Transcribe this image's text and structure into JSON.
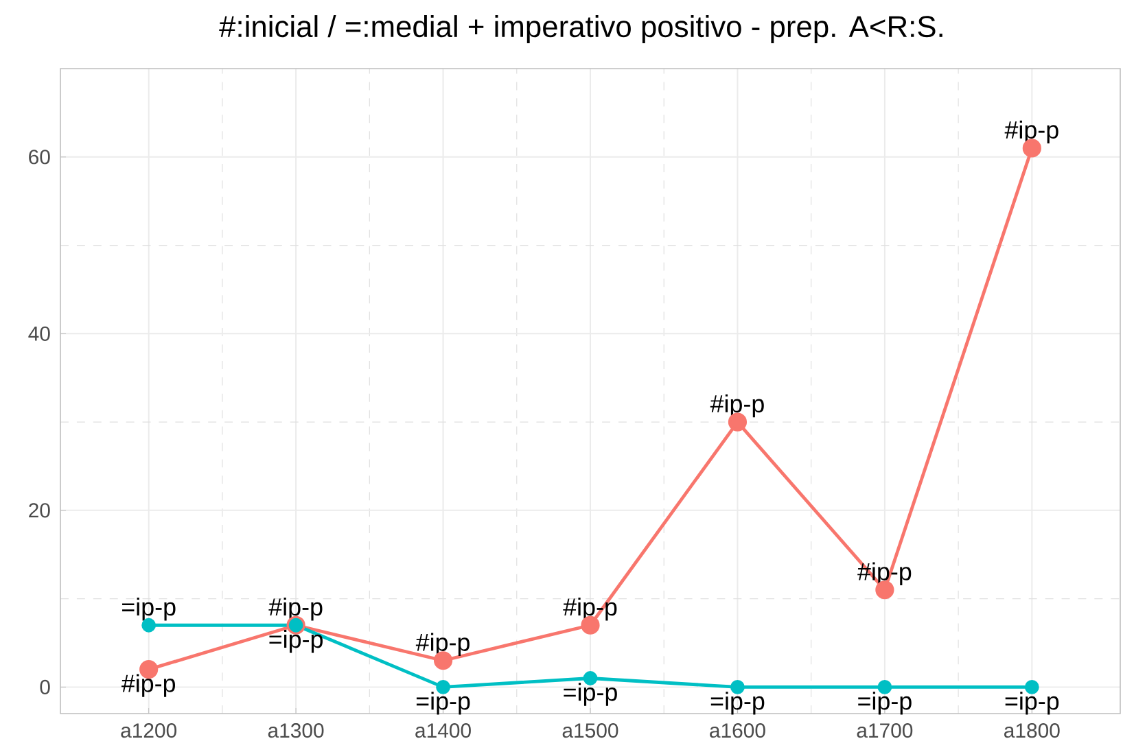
{
  "chart_data": {
    "type": "line",
    "title": "#:inicial / =:medial + imperativo positivo - prep. A<R:S.",
    "categories": [
      "a1200",
      "a1300",
      "a1400",
      "a1500",
      "a1600",
      "a1700",
      "a1800"
    ],
    "series": [
      {
        "color": "#f8766d",
        "values": [
          2,
          7,
          3,
          7,
          30,
          11,
          61
        ]
      },
      {
        "color": "#00bfc4",
        "values": [
          7,
          7,
          0,
          1,
          0,
          0,
          0
        ]
      }
    ],
    "annotations": [
      {
        "text": "#ip-p",
        "x": "a1200",
        "y": 2
      },
      {
        "text": "#ip-p",
        "x": "a1300",
        "y": 7
      },
      {
        "text": "#ip-p",
        "x": "a1400",
        "y": 3
      },
      {
        "text": "#ip-p",
        "x": "a1500",
        "y": 7
      },
      {
        "text": "#ip-p",
        "x": "a1600",
        "y": 30
      },
      {
        "text": "#ip-p",
        "x": "a1700",
        "y": 11
      },
      {
        "text": "#ip-p",
        "x": "a1800",
        "y": 61
      },
      {
        "text": "=ip-p",
        "x": "a1200",
        "y": 7
      },
      {
        "text": "=ip-p",
        "x": "a1300",
        "y": 7
      },
      {
        "text": "=ip-p",
        "x": "a1400",
        "y": 0
      },
      {
        "text": "=ip-p",
        "x": "a1500",
        "y": 1
      },
      {
        "text": "=ip-p",
        "x": "a1600",
        "y": 0
      },
      {
        "text": "=ip-p",
        "x": "a1700",
        "y": 0
      },
      {
        "text": "=ip-p",
        "x": "a1800",
        "y": 0
      }
    ],
    "ylim": [
      -3,
      70
    ],
    "yticks": [
      0,
      20,
      40,
      60
    ],
    "grid": true,
    "marker": "circle",
    "line_style": "solid"
  }
}
